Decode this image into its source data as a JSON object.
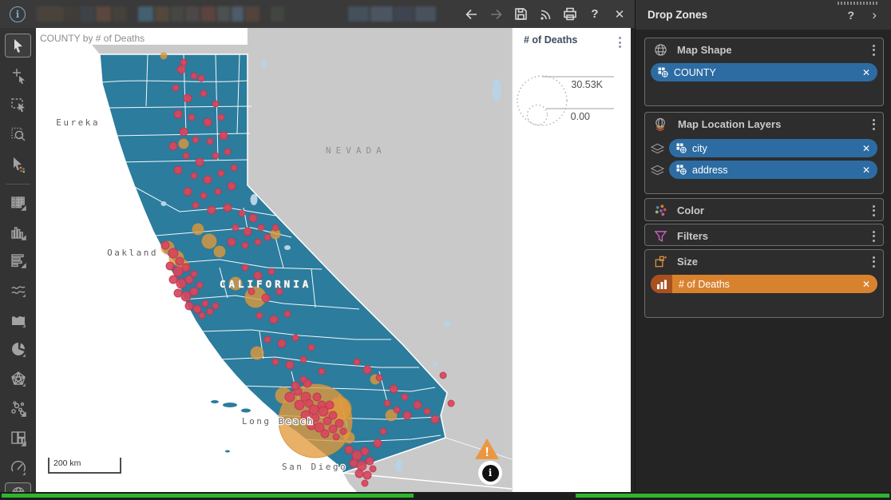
{
  "top_bar": {
    "info_glyph": "i",
    "back_label": "back",
    "forward_label": "forward",
    "help": "?",
    "close": "✕"
  },
  "toolbar": {
    "icons": [
      "pointer-select",
      "add-point",
      "marquee-select",
      "zoom-area-select",
      "data-select",
      "crosstab",
      "bar-chart",
      "list-bars",
      "line-chart",
      "area-chart",
      "pie-chart",
      "network",
      "scatter",
      "treemap",
      "gauge",
      "geo-map"
    ],
    "selected": "pointer-select"
  },
  "map_view": {
    "title": "COUNTY by # of Deaths",
    "labels": {
      "eureka": "Eureka",
      "nevada": "NEVADA",
      "oakland": "Oakland",
      "california": "CALIFORNIA",
      "long_beach": "Long Beach",
      "san_diego": "San Diego"
    },
    "scale": "200 km",
    "warning_glyph": "!",
    "info_glyph": "i",
    "bubbles": {
      "orange": [
        [
          350,
          492,
          46
        ],
        [
          380,
          477,
          15
        ],
        [
          392,
          513,
          7
        ],
        [
          310,
          460,
          10
        ],
        [
          277,
          407,
          8
        ],
        [
          275,
          337,
          13
        ],
        [
          250,
          320,
          8
        ],
        [
          230,
          280,
          7
        ],
        [
          165,
          275,
          8
        ],
        [
          176,
          288,
          9
        ],
        [
          184,
          297,
          7
        ],
        [
          217,
          267,
          9
        ],
        [
          203,
          252,
          7
        ],
        [
          160,
          35,
          4
        ],
        [
          185,
          145,
          6
        ],
        [
          445,
          485,
          7
        ],
        [
          425,
          440,
          6
        ],
        [
          300,
          258,
          6
        ]
      ],
      "red": [
        [
          185,
          43,
          4
        ],
        [
          207,
          63,
          4
        ],
        [
          182,
          52,
          5
        ],
        [
          198,
          60,
          4
        ],
        [
          175,
          75,
          4
        ],
        [
          190,
          88,
          5
        ],
        [
          210,
          82,
          4
        ],
        [
          225,
          95,
          4
        ],
        [
          178,
          108,
          5
        ],
        [
          195,
          112,
          4
        ],
        [
          215,
          118,
          5
        ],
        [
          232,
          112,
          4
        ],
        [
          185,
          130,
          5
        ],
        [
          200,
          140,
          4
        ],
        [
          172,
          148,
          5
        ],
        [
          218,
          142,
          4
        ],
        [
          235,
          135,
          5
        ],
        [
          188,
          160,
          4
        ],
        [
          205,
          168,
          5
        ],
        [
          225,
          160,
          4
        ],
        [
          240,
          155,
          4
        ],
        [
          178,
          178,
          5
        ],
        [
          198,
          185,
          4
        ],
        [
          215,
          190,
          5
        ],
        [
          232,
          182,
          4
        ],
        [
          248,
          175,
          4
        ],
        [
          190,
          205,
          5
        ],
        [
          210,
          210,
          4
        ],
        [
          228,
          205,
          4
        ],
        [
          245,
          198,
          5
        ],
        [
          200,
          222,
          4
        ],
        [
          220,
          228,
          5
        ],
        [
          240,
          225,
          5
        ],
        [
          258,
          232,
          4
        ],
        [
          272,
          238,
          5
        ],
        [
          250,
          250,
          4
        ],
        [
          265,
          255,
          5
        ],
        [
          282,
          250,
          4
        ],
        [
          245,
          268,
          5
        ],
        [
          262,
          272,
          4
        ],
        [
          278,
          268,
          4
        ],
        [
          290,
          262,
          4
        ],
        [
          300,
          250,
          4
        ],
        [
          162,
          272,
          5
        ],
        [
          172,
          282,
          6
        ],
        [
          180,
          292,
          5
        ],
        [
          168,
          298,
          5
        ],
        [
          178,
          305,
          6
        ],
        [
          188,
          300,
          5
        ],
        [
          172,
          315,
          5
        ],
        [
          182,
          320,
          6
        ],
        [
          192,
          315,
          5
        ],
        [
          198,
          308,
          4
        ],
        [
          178,
          332,
          5
        ],
        [
          188,
          336,
          6
        ],
        [
          198,
          330,
          5
        ],
        [
          205,
          322,
          4
        ],
        [
          192,
          348,
          5
        ],
        [
          202,
          352,
          5
        ],
        [
          212,
          345,
          4
        ],
        [
          208,
          360,
          4
        ],
        [
          218,
          355,
          4
        ],
        [
          225,
          348,
          4
        ],
        [
          262,
          300,
          4
        ],
        [
          278,
          310,
          5
        ],
        [
          295,
          305,
          4
        ],
        [
          270,
          330,
          4
        ],
        [
          288,
          338,
          5
        ],
        [
          305,
          330,
          4
        ],
        [
          280,
          360,
          4
        ],
        [
          298,
          365,
          5
        ],
        [
          315,
          358,
          4
        ],
        [
          290,
          390,
          4
        ],
        [
          308,
          395,
          5
        ],
        [
          325,
          388,
          4
        ],
        [
          300,
          418,
          4
        ],
        [
          318,
          422,
          5
        ],
        [
          335,
          415,
          4
        ],
        [
          345,
          400,
          4
        ],
        [
          358,
          430,
          4
        ],
        [
          340,
          445,
          5
        ],
        [
          318,
          462,
          6
        ],
        [
          328,
          455,
          5
        ],
        [
          338,
          462,
          6
        ],
        [
          330,
          472,
          6
        ],
        [
          342,
          470,
          5
        ],
        [
          352,
          462,
          5
        ],
        [
          348,
          478,
          6
        ],
        [
          358,
          472,
          5
        ],
        [
          338,
          485,
          6
        ],
        [
          350,
          488,
          5
        ],
        [
          360,
          480,
          6
        ],
        [
          368,
          472,
          5
        ],
        [
          345,
          498,
          5
        ],
        [
          355,
          500,
          6
        ],
        [
          365,
          492,
          5
        ],
        [
          372,
          485,
          5
        ],
        [
          362,
          508,
          5
        ],
        [
          372,
          502,
          5
        ],
        [
          380,
          495,
          5
        ],
        [
          376,
          512,
          4
        ],
        [
          385,
          505,
          4
        ],
        [
          325,
          448,
          5
        ],
        [
          335,
          440,
          4
        ],
        [
          402,
          418,
          4
        ],
        [
          415,
          428,
          5
        ],
        [
          430,
          438,
          4
        ],
        [
          448,
          452,
          5
        ],
        [
          462,
          462,
          4
        ],
        [
          478,
          472,
          5
        ],
        [
          490,
          480,
          4
        ],
        [
          452,
          478,
          4
        ],
        [
          465,
          485,
          5
        ],
        [
          440,
          470,
          4
        ],
        [
          500,
          490,
          5
        ],
        [
          510,
          435,
          4
        ],
        [
          520,
          470,
          4
        ],
        [
          392,
          528,
          5
        ],
        [
          402,
          535,
          6
        ],
        [
          412,
          530,
          5
        ],
        [
          398,
          545,
          5
        ],
        [
          408,
          548,
          6
        ],
        [
          418,
          542,
          5
        ],
        [
          405,
          558,
          5
        ],
        [
          415,
          560,
          5
        ],
        [
          422,
          552,
          4
        ],
        [
          412,
          570,
          4
        ],
        [
          428,
          520,
          5
        ],
        [
          435,
          505,
          4
        ]
      ]
    }
  },
  "legend": {
    "title": "# of Deaths",
    "max": "30.53K",
    "min": "0.00"
  },
  "drop_zones": {
    "panel_title": "Drop Zones",
    "help": "?",
    "zones": [
      {
        "id": "map-shape",
        "label": "Map Shape",
        "pills": [
          {
            "label": "COUNTY"
          }
        ]
      },
      {
        "id": "map-location-layers",
        "label": "Map Location Layers",
        "pills": [
          {
            "label": "city"
          },
          {
            "label": "address"
          }
        ]
      },
      {
        "id": "color",
        "label": "Color",
        "pills": []
      },
      {
        "id": "filters",
        "label": "Filters",
        "pills": []
      },
      {
        "id": "size",
        "label": "Size",
        "pills": [
          {
            "label": "# of Deaths"
          }
        ]
      }
    ]
  },
  "glyphs": {
    "remove": "✕"
  },
  "colors": {
    "county_fill": "#2b7c9d",
    "land_gray": "#c9c9c9",
    "lake_blue": "#b9d2e4",
    "dot_red": "#d8455c",
    "dot_red_edge": "#bc3850",
    "bubble_orange": "#e39a3c",
    "bubble_orange_edge": "#d28f33",
    "pill_blue": "#2d6ca3",
    "pill_orange": "#d9822e",
    "pill_orange_dark": "#a8511f",
    "warning_orange": "#eb9742",
    "taskbar_green": "#2db52d",
    "panel_dark": "#242424",
    "topbar": "#3a3a3a",
    "card_border": "#6e6e6e"
  }
}
